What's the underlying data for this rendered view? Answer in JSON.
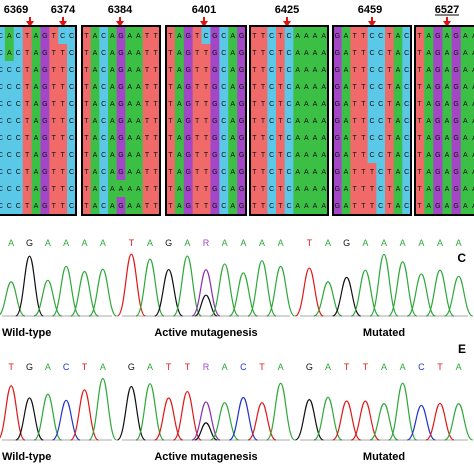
{
  "colors": {
    "A": "#3cbf45",
    "C": "#5bc8e8",
    "G": "#a347c7",
    "T": "#f06a6a",
    "R": "#a347c7",
    "arrow": "#e01010",
    "box_border": "#000000"
  },
  "alignment": {
    "positions": [
      "6369",
      "6374",
      "6384",
      "6401",
      "6425",
      "6459",
      "6527"
    ],
    "blocks": [
      {
        "rows": [
          "CACTAGTCC",
          "CACTAGTTC",
          "CCCTAGTTC",
          "CCCTAGTTC",
          "CCCTAGTTC",
          "CCCTAGTTC",
          "CCCTAGTTC",
          "CCCTAGTTC",
          "CCCTAGTTC",
          "CCCTAGTTC",
          "CCCTAGTTC"
        ]
      },
      {
        "rows": [
          "TACAGAATT",
          "TACAGAATT",
          "TACAGAATT",
          "TACAGAATT",
          "TACAGAATT",
          "TACAGAATT",
          "TACAGAATT",
          "TACAGAATT",
          "TACAGAATT",
          "TACAAAATT",
          "TACAGAATT"
        ]
      },
      {
        "rows": [
          "TAGTCGCAG",
          "TAGTTGCAG",
          "TAGTTGCAG",
          "TAGTTGCAG",
          "TAGTTGCAG",
          "TAGTTGCAG",
          "TAGTTGCAG",
          "TAGTTGCAG",
          "TAGTTGCAG",
          "TAGTTGCAG",
          "TAGTTGCAG"
        ]
      },
      {
        "rows": [
          "TTCTCAAAA",
          "TTCTCAAAA",
          "TTCTCAAAA",
          "TTCTCAAAA",
          "TTCTCAAAA",
          "TTCTCAAAA",
          "TTCTCAAAA",
          "TTCTCAAAA",
          "TTCTCAAAA",
          "TTCTCAAAA",
          "TTCTCAAAA"
        ]
      },
      {
        "rows": [
          "GATTCCTAC",
          "GATTCCTAC",
          "GATTCCTAC",
          "GATTCCTAC",
          "GATTCCTAC",
          "GATTCCTAC",
          "GATTCCTAC",
          "GATTCCTAC",
          "GATTTCTAC",
          "GATTTCTAC",
          "GATTTCTAC"
        ]
      },
      {
        "rows": [
          "TAGAGAA",
          "TAGAGAA",
          "TAGAGAA",
          "TAGAGAA",
          "TAGAGAA",
          "TAGAGAA",
          "TAGAGAA",
          "TAGAGAA",
          "TAGAGAA",
          "TAGAGAA",
          "TAGAGAA"
        ]
      }
    ]
  },
  "chromatograms": {
    "rows": [
      {
        "panel_letter": "C",
        "panels": [
          {
            "caption": "Wild-type",
            "seq": [
              "A",
              "G",
              "A",
              "A",
              "A",
              "A"
            ]
          },
          {
            "caption": "Active mutagenesis",
            "seq": [
              "T",
              "A",
              "G",
              "A",
              "R",
              "A",
              "A",
              "A",
              "A"
            ]
          },
          {
            "caption": "Mutated",
            "seq": [
              "T",
              "A",
              "G",
              "A",
              "A",
              "A",
              "A",
              "A",
              "A"
            ]
          }
        ]
      },
      {
        "panel_letter": "E",
        "panels": [
          {
            "caption": "Wild-type",
            "seq": [
              "T",
              "G",
              "A",
              "C",
              "T",
              "A"
            ]
          },
          {
            "caption": "Active mutagenesis",
            "seq": [
              "G",
              "A",
              "T",
              "T",
              "R",
              "A",
              "C",
              "T",
              "A"
            ]
          },
          {
            "caption": "Mutated",
            "seq": [
              "G",
              "A",
              "T",
              "T",
              "A",
              "A",
              "C",
              "T",
              "A"
            ]
          }
        ]
      }
    ]
  }
}
